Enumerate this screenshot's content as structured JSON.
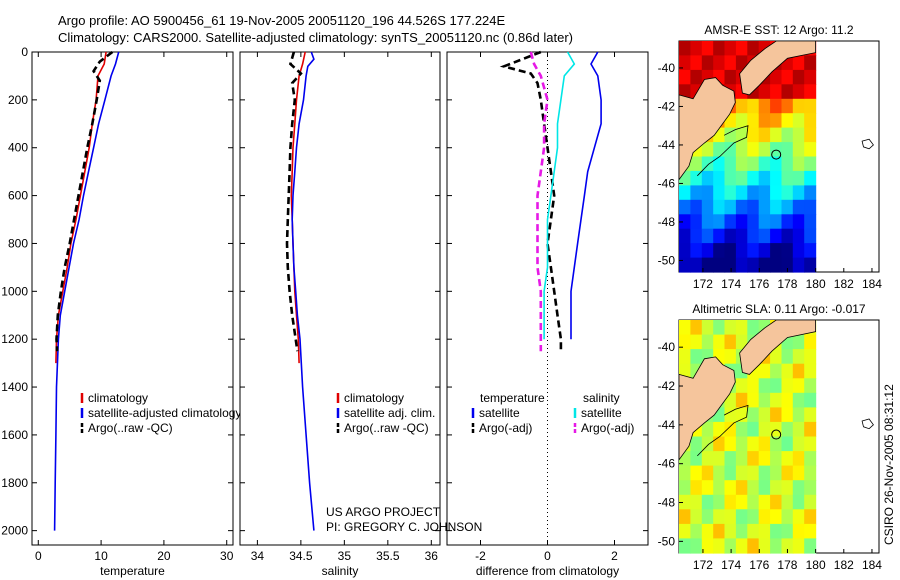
{
  "header": {
    "line1": "Argo profile: AO 5900456_61 19-Nov-2005 20051120_196 44.526S 177.224E",
    "line2": "Climatology: CARS2000. Satellite-adjusted climatology: synTS_20051120.nc (0.86d later)"
  },
  "colors": {
    "red": "#e00000",
    "blue": "#0000ee",
    "black": "#000000",
    "cyan": "#00e6e6",
    "magenta": "#e619e6",
    "land": "#f5c59c"
  },
  "chart_data": [
    {
      "type": "line",
      "name": "temperature",
      "xlabel": "temperature",
      "ylabel": "",
      "xlim": [
        -1,
        31
      ],
      "ylim": [
        2060,
        0
      ],
      "xticks": [
        0,
        10,
        20,
        30
      ],
      "yticks": [
        0,
        200,
        400,
        600,
        800,
        1000,
        1200,
        1400,
        1600,
        1800,
        2000
      ],
      "legend": {
        "position": "lower-right",
        "entries": [
          "climatology",
          "satellite-adjusted climatology",
          "Argo(..raw -QC)"
        ]
      },
      "series": [
        {
          "name": "climatology",
          "color": "red",
          "dash": "solid",
          "points": [
            [
              10.8,
              0
            ],
            [
              10.5,
              50
            ],
            [
              9.5,
              100
            ],
            [
              9.2,
              200
            ],
            [
              8.6,
              300
            ],
            [
              8.1,
              400
            ],
            [
              7.4,
              500
            ],
            [
              6.7,
              600
            ],
            [
              6.0,
              700
            ],
            [
              5.2,
              800
            ],
            [
              4.6,
              900
            ],
            [
              3.9,
              1000
            ],
            [
              3.2,
              1100
            ],
            [
              2.9,
              1200
            ],
            [
              2.8,
              1300
            ]
          ]
        },
        {
          "name": "satellite-adjusted climatology",
          "color": "blue",
          "dash": "solid",
          "points": [
            [
              12.8,
              0
            ],
            [
              12.3,
              50
            ],
            [
              11.6,
              100
            ],
            [
              10.6,
              200
            ],
            [
              9.6,
              300
            ],
            [
              8.8,
              400
            ],
            [
              8.0,
              500
            ],
            [
              7.2,
              600
            ],
            [
              6.5,
              700
            ],
            [
              5.6,
              800
            ],
            [
              4.9,
              900
            ],
            [
              4.2,
              1000
            ],
            [
              3.5,
              1100
            ],
            [
              3.2,
              1200
            ],
            [
              2.9,
              1400
            ],
            [
              2.8,
              1600
            ],
            [
              2.7,
              1800
            ],
            [
              2.6,
              2000
            ]
          ]
        },
        {
          "name": "Argo(..raw -QC)",
          "color": "black",
          "dash": "dash",
          "points": [
            [
              11.8,
              0
            ],
            [
              9.8,
              40
            ],
            [
              8.8,
              80
            ],
            [
              9.8,
              120
            ],
            [
              9.3,
              200
            ],
            [
              8.6,
              300
            ],
            [
              7.8,
              400
            ],
            [
              7.1,
              500
            ],
            [
              6.4,
              600
            ],
            [
              5.7,
              700
            ],
            [
              5.0,
              800
            ],
            [
              4.2,
              900
            ],
            [
              3.6,
              1000
            ],
            [
              3.1,
              1100
            ],
            [
              2.9,
              1200
            ],
            [
              3.0,
              1250
            ]
          ]
        }
      ]
    },
    {
      "type": "line",
      "name": "salinity",
      "xlabel": "salinity",
      "ylabel": "",
      "xlim": [
        33.8,
        36.1
      ],
      "ylim": [
        2060,
        0
      ],
      "xticks": [
        34,
        34.5,
        35,
        35.5,
        36
      ],
      "legend": {
        "position": "lower-right",
        "entries": [
          "climatology",
          "satellite adj. clim.",
          "Argo(..raw -QC)"
        ]
      },
      "series": [
        {
          "name": "climatology",
          "color": "red",
          "dash": "solid",
          "points": [
            [
              34.55,
              0
            ],
            [
              34.52,
              50
            ],
            [
              34.48,
              100
            ],
            [
              34.45,
              200
            ],
            [
              34.43,
              300
            ],
            [
              34.41,
              400
            ],
            [
              34.4,
              500
            ],
            [
              34.39,
              600
            ],
            [
              34.4,
              700
            ],
            [
              34.41,
              800
            ],
            [
              34.42,
              900
            ],
            [
              34.43,
              1000
            ],
            [
              34.45,
              1100
            ],
            [
              34.47,
              1200
            ],
            [
              34.48,
              1300
            ]
          ]
        },
        {
          "name": "satellite adj. clim.",
          "color": "blue",
          "dash": "solid",
          "points": [
            [
              34.62,
              0
            ],
            [
              34.65,
              30
            ],
            [
              34.58,
              60
            ],
            [
              34.56,
              100
            ],
            [
              34.53,
              200
            ],
            [
              34.48,
              300
            ],
            [
              34.45,
              400
            ],
            [
              34.43,
              500
            ],
            [
              34.41,
              600
            ],
            [
              34.4,
              700
            ],
            [
              34.41,
              800
            ],
            [
              34.42,
              900
            ],
            [
              34.44,
              1000
            ],
            [
              34.46,
              1100
            ],
            [
              34.49,
              1200
            ],
            [
              34.52,
              1400
            ],
            [
              34.56,
              1600
            ],
            [
              34.6,
              1800
            ],
            [
              34.65,
              2000
            ]
          ]
        },
        {
          "name": "Argo(..raw -QC)",
          "color": "black",
          "dash": "dash",
          "points": [
            [
              34.42,
              0
            ],
            [
              34.38,
              50
            ],
            [
              34.5,
              90
            ],
            [
              34.4,
              130
            ],
            [
              34.43,
              200
            ],
            [
              34.4,
              300
            ],
            [
              34.38,
              400
            ],
            [
              34.37,
              500
            ],
            [
              34.36,
              600
            ],
            [
              34.35,
              700
            ],
            [
              34.34,
              800
            ],
            [
              34.35,
              900
            ],
            [
              34.37,
              1000
            ],
            [
              34.4,
              1100
            ],
            [
              34.44,
              1200
            ],
            [
              34.46,
              1250
            ]
          ]
        }
      ]
    },
    {
      "type": "line",
      "name": "difference",
      "xlabel": "difference from climatology",
      "ylabel": "",
      "xlim": [
        -3,
        3
      ],
      "ylim": [
        2060,
        0
      ],
      "xticks": [
        -2,
        0,
        2
      ],
      "legend": {
        "position": "lower-right",
        "entries": [
          "temperature",
          "satellite",
          "Argo(-adj)",
          "salinity",
          "satellite",
          "Argo(-adj)"
        ]
      },
      "series": [
        {
          "name": "temperature satellite",
          "color": "blue",
          "dash": "solid",
          "points": [
            [
              1.5,
              0
            ],
            [
              1.3,
              50
            ],
            [
              1.5,
              100
            ],
            [
              1.6,
              200
            ],
            [
              1.6,
              300
            ],
            [
              1.4,
              400
            ],
            [
              1.2,
              500
            ],
            [
              1.1,
              600
            ],
            [
              1.0,
              700
            ],
            [
              0.9,
              800
            ],
            [
              0.8,
              900
            ],
            [
              0.7,
              1000
            ],
            [
              0.7,
              1100
            ],
            [
              0.7,
              1200
            ]
          ]
        },
        {
          "name": "temperature Argo(-adj)",
          "color": "black",
          "dash": "dash",
          "points": [
            [
              -0.2,
              0
            ],
            [
              -1.3,
              60
            ],
            [
              -0.5,
              90
            ],
            [
              -0.3,
              130
            ],
            [
              -0.2,
              200
            ],
            [
              -0.1,
              300
            ],
            [
              0.0,
              400
            ],
            [
              0.1,
              500
            ],
            [
              0.2,
              600
            ],
            [
              0.1,
              700
            ],
            [
              0.0,
              800
            ],
            [
              0.1,
              900
            ],
            [
              0.2,
              1000
            ],
            [
              0.3,
              1100
            ],
            [
              0.4,
              1200
            ],
            [
              0.4,
              1250
            ]
          ]
        },
        {
          "name": "salinity satellite",
          "color": "cyan",
          "dash": "solid",
          "points": [
            [
              0.6,
              0
            ],
            [
              0.8,
              50
            ],
            [
              0.5,
              100
            ],
            [
              0.4,
              200
            ],
            [
              0.3,
              300
            ],
            [
              0.3,
              400
            ],
            [
              0.2,
              500
            ],
            [
              0.1,
              600
            ],
            [
              0.0,
              700
            ],
            [
              0.0,
              800
            ],
            [
              0.0,
              900
            ],
            [
              -0.1,
              1000
            ],
            [
              -0.1,
              1100
            ],
            [
              -0.1,
              1200
            ]
          ]
        },
        {
          "name": "salinity Argo(-adj)",
          "color": "magenta",
          "dash": "dash",
          "points": [
            [
              -0.5,
              0
            ],
            [
              -0.4,
              50
            ],
            [
              -0.2,
              100
            ],
            [
              0.0,
              200
            ],
            [
              -0.1,
              300
            ],
            [
              -0.1,
              400
            ],
            [
              -0.2,
              500
            ],
            [
              -0.3,
              600
            ],
            [
              -0.3,
              700
            ],
            [
              -0.3,
              800
            ],
            [
              -0.3,
              900
            ],
            [
              -0.2,
              1000
            ],
            [
              -0.2,
              1100
            ],
            [
              -0.2,
              1200
            ],
            [
              -0.2,
              1250
            ]
          ]
        }
      ],
      "annotations": [
        "US ARGO PROJECT",
        "PI: GREGORY C. JOHNSON"
      ]
    },
    {
      "type": "heatmap",
      "name": "sst-map",
      "title": "AMSR-E SST: 12 Argo: 11.2",
      "xlim": [
        170.3,
        184.5
      ],
      "ylim": [
        -50.6,
        -38.6
      ],
      "xticks": [
        172,
        174,
        176,
        178,
        180,
        182,
        184
      ],
      "yticks": [
        -40,
        -42,
        -44,
        -46,
        -48,
        -50
      ],
      "marker": {
        "lon": 177.2,
        "lat": -44.5
      }
    },
    {
      "type": "heatmap",
      "name": "sla-map",
      "title": "Altimetric SLA: 0.11 Argo: -0.017",
      "xlim": [
        170.3,
        184.5
      ],
      "ylim": [
        -50.6,
        -38.6
      ],
      "xticks": [
        172,
        174,
        176,
        178,
        180,
        182,
        184
      ],
      "yticks": [
        -40,
        -42,
        -44,
        -46,
        -48,
        -50
      ],
      "marker": {
        "lon": 177.2,
        "lat": -44.5
      }
    }
  ],
  "footer": {
    "credit": "CSIRO 26-Nov-2005 08:31:12"
  }
}
